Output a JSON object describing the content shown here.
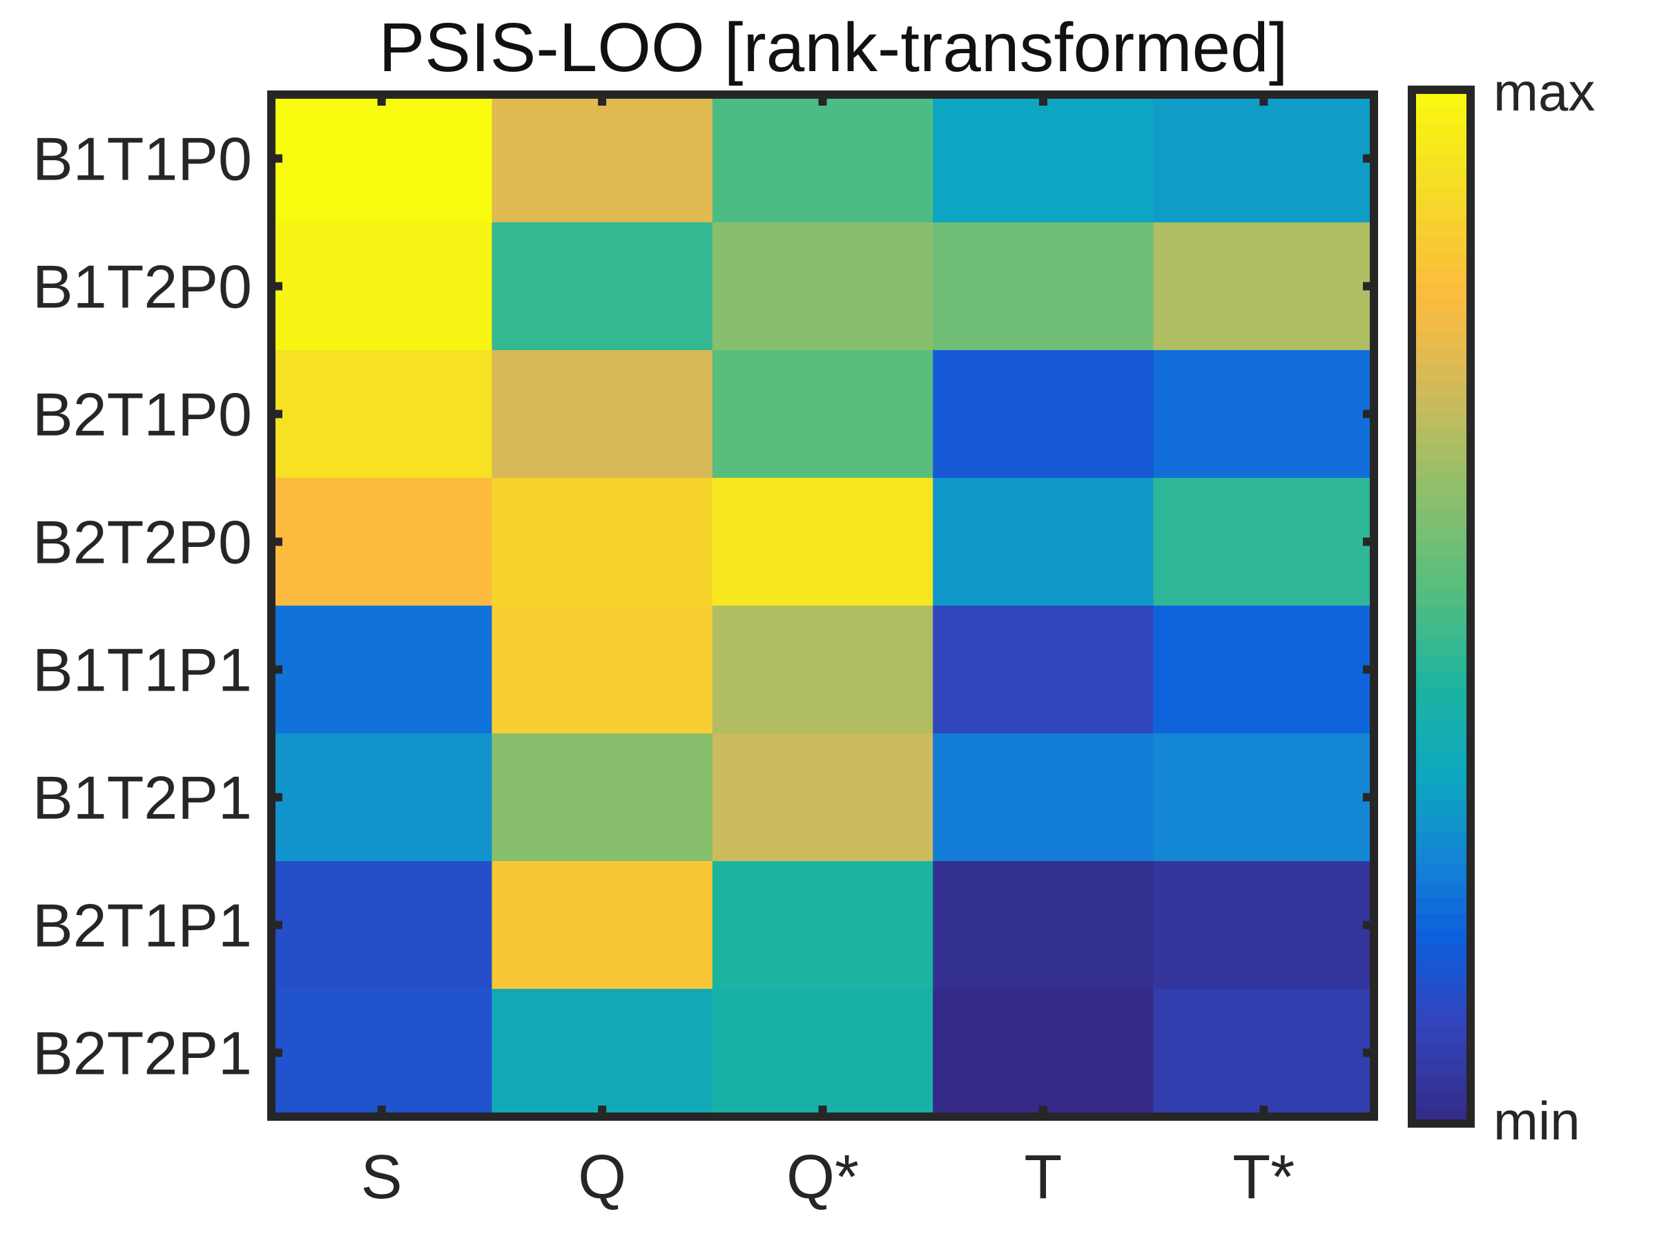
{
  "chart_data": {
    "type": "heatmap",
    "title": "PSIS-LOO [rank-transformed]",
    "x_categories": [
      "S",
      "Q",
      "Q*",
      "T",
      "T*"
    ],
    "y_categories": [
      "B1T1P0",
      "B1T2P0",
      "B2T1P0",
      "B2T2P0",
      "B1T1P1",
      "B1T2P1",
      "B2T1P1",
      "B2T2P1"
    ],
    "values": [
      [
        1.0,
        0.74,
        0.5,
        0.33,
        0.31
      ],
      [
        0.98,
        0.46,
        0.6,
        0.56,
        0.66
      ],
      [
        0.92,
        0.72,
        0.52,
        0.16,
        0.21
      ],
      [
        0.8,
        0.88,
        0.94,
        0.3,
        0.45
      ],
      [
        0.22,
        0.86,
        0.66,
        0.1,
        0.19
      ],
      [
        0.29,
        0.6,
        0.7,
        0.24,
        0.26
      ],
      [
        0.13,
        0.84,
        0.42,
        0.02,
        0.04
      ],
      [
        0.14,
        0.36,
        0.4,
        0.0,
        0.07
      ]
    ],
    "colormap": "parula",
    "colorbar": {
      "max_label": "max",
      "min_label": "min"
    },
    "xlabel": "",
    "ylabel": ""
  }
}
